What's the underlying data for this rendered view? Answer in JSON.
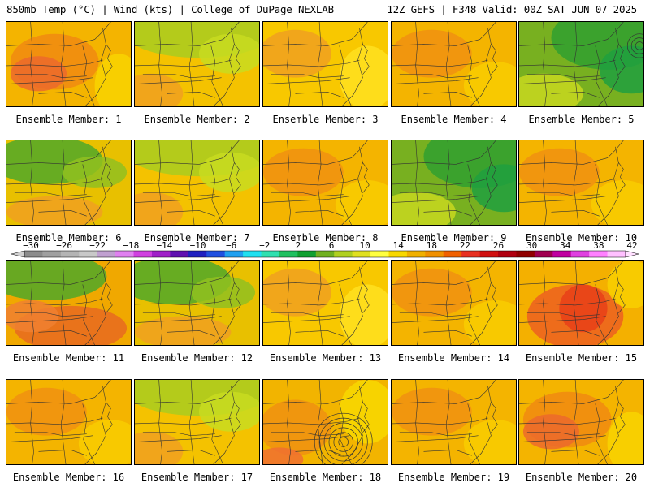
{
  "header": {
    "left_title": "850mb Temp (°C) | Wind (kts) | College of DuPage NEXLAB",
    "right_title": "12Z GEFS | F348 Valid: 00Z SAT JUN 07 2025"
  },
  "colorbar": {
    "tick_labels": [
      "−30",
      "−26",
      "−22",
      "−18",
      "−14",
      "−10",
      "−6",
      "−2",
      "2",
      "6",
      "10",
      "14",
      "18",
      "22",
      "26",
      "30",
      "34",
      "38",
      "42"
    ],
    "colors": [
      "#8c8c8c",
      "#a0a0a0",
      "#b4b4b4",
      "#c8c8c8",
      "#c0a0d0",
      "#e080f0",
      "#d040e0",
      "#a020c8",
      "#6010b0",
      "#2020c0",
      "#2050e0",
      "#20a0f0",
      "#20e0f0",
      "#30e0b0",
      "#20c060",
      "#10a030",
      "#70b020",
      "#b0d020",
      "#e0e020",
      "#ffff40",
      "#f8d800",
      "#f0b000",
      "#f09000",
      "#f06000",
      "#e83020",
      "#d01010",
      "#b00010",
      "#900000",
      "#a00050",
      "#c000a0",
      "#e040e0",
      "#ff80ff",
      "#ffc0ff"
    ]
  },
  "panels": [
    {
      "caption": "Ensemble Member: 1",
      "palette": "warm"
    },
    {
      "caption": "Ensemble Member: 2",
      "palette": "cool-north"
    },
    {
      "caption": "Ensemble Member: 3",
      "palette": "mid"
    },
    {
      "caption": "Ensemble Member: 4",
      "palette": "warm-mid"
    },
    {
      "caption": "Ensemble Member: 5",
      "palette": "green"
    },
    {
      "caption": "Ensemble Member: 6",
      "palette": "green-mid"
    },
    {
      "caption": "Ensemble Member: 7",
      "palette": "cool-north"
    },
    {
      "caption": "Ensemble Member: 8",
      "palette": "warm-mid"
    },
    {
      "caption": "Ensemble Member: 9",
      "palette": "green"
    },
    {
      "caption": "Ensemble Member: 10",
      "palette": "warm-mid"
    },
    {
      "caption": "Ensemble Member: 11",
      "palette": "green-south-hot"
    },
    {
      "caption": "Ensemble Member: 12",
      "palette": "green-mid"
    },
    {
      "caption": "Ensemble Member: 13",
      "palette": "mid"
    },
    {
      "caption": "Ensemble Member: 14",
      "palette": "warm-mid"
    },
    {
      "caption": "Ensemble Member: 15",
      "palette": "hot"
    },
    {
      "caption": "Ensemble Member: 16",
      "palette": "warm-mid"
    },
    {
      "caption": "Ensemble Member: 17",
      "palette": "cool-north"
    },
    {
      "caption": "Ensemble Member: 18",
      "palette": "cyclone"
    },
    {
      "caption": "Ensemble Member: 19",
      "palette": "warm-mid"
    },
    {
      "caption": "Ensemble Member: 20",
      "palette": "warm"
    }
  ]
}
